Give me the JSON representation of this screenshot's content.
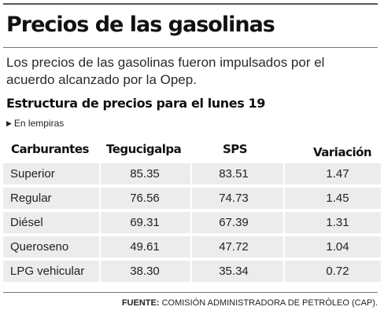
{
  "title": "Precios de las gasolinas",
  "lead": "Los precios de las gasolinas fueron impulsados por el acuerdo alcanzado por la Opep.",
  "source_label": "FUENTE:",
  "source_text": "COMISIÓN ADMINISTRADORA DE PETRÓLEO (CAP).",
  "chart_data": {
    "type": "table",
    "title": "Estructura de precios para el lunes 19",
    "unit": "En lempiras",
    "columns": [
      "Carburantes",
      "Tegucigalpa",
      "SPS",
      "Variación"
    ],
    "rows": [
      {
        "name": "Superior",
        "tegucigalpa": "85.35",
        "sps": "83.51",
        "variacion": "1.47"
      },
      {
        "name": "Regular",
        "tegucigalpa": "76.56",
        "sps": "74.73",
        "variacion": "1.45"
      },
      {
        "name": "Diésel",
        "tegucigalpa": "69.31",
        "sps": "67.39",
        "variacion": "1.31"
      },
      {
        "name": "Queroseno",
        "tegucigalpa": "49.61",
        "sps": "47.72",
        "variacion": "1.04"
      },
      {
        "name": "LPG vehicular",
        "tegucigalpa": "38.30",
        "sps": "35.34",
        "variacion": "0.72"
      }
    ]
  }
}
